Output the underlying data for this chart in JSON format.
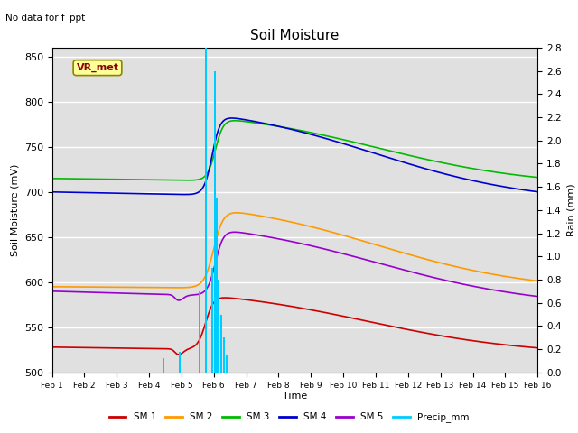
{
  "title": "Soil Moisture",
  "xlabel": "Time",
  "ylabel_left": "Soil Moisture (mV)",
  "ylabel_right": "Rain (mm)",
  "no_data_text": "No data for f_ppt",
  "vr_met_label": "VR_met",
  "ylim_left": [
    500,
    860
  ],
  "ylim_right": [
    0.0,
    2.8
  ],
  "xlim": [
    0,
    15
  ],
  "yticks_left": [
    500,
    550,
    600,
    650,
    700,
    750,
    800,
    850
  ],
  "yticks_right": [
    0.0,
    0.2,
    0.4,
    0.6,
    0.8,
    1.0,
    1.2,
    1.4,
    1.6,
    1.8,
    2.0,
    2.2,
    2.4,
    2.6,
    2.8
  ],
  "xtick_labels": [
    "Feb 1",
    "Feb 2",
    "Feb 3",
    "Feb 4",
    "Feb 5",
    "Feb 6",
    "Feb 7",
    "Feb 8",
    "Feb 9",
    "Feb 10",
    "Feb 11",
    "Feb 12",
    "Feb 13",
    "Feb 14",
    "Feb 15",
    "Feb 16"
  ],
  "background_color": "#e0e0e0",
  "colors": {
    "SM1": "#cc0000",
    "SM2": "#ff9900",
    "SM3": "#00bb00",
    "SM4": "#0000cc",
    "SM5": "#9900cc",
    "Precip": "#00ccff"
  },
  "precip_x": [
    3.45,
    3.95,
    4.55,
    4.75,
    4.88,
    4.95,
    5.02,
    5.08,
    5.15,
    5.22,
    5.3,
    5.4
  ],
  "precip_h": [
    0.12,
    0.18,
    0.7,
    2.82,
    1.8,
    0.9,
    2.6,
    1.5,
    0.8,
    0.5,
    0.3,
    0.15
  ],
  "bar_width": 0.055
}
